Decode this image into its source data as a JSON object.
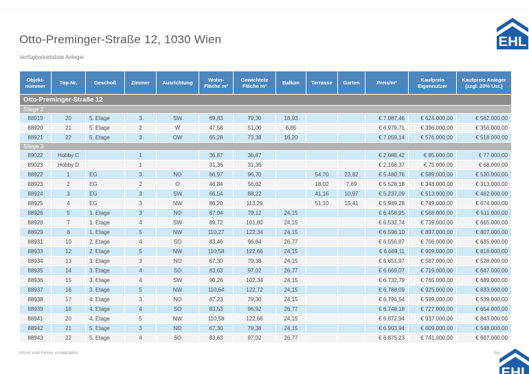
{
  "page": {
    "title": "Otto-Preminger-Straße 12, 1030 Wien",
    "subtitle": "Verfügbarkeitsliste Anleger"
  },
  "logo": {
    "text": "EHL"
  },
  "table": {
    "columns": [
      "Objekt- nummer",
      "Top-Nr.",
      "Geschoß",
      "Zimmer",
      "Ausrichtung",
      "Wohn- Fläche m²",
      "Gewichtete Fläche m²",
      "Balkon",
      "Terrasse",
      "Garten",
      "Preis/m²",
      "Kaufpreis Eigennutzer",
      "Kaufpreis Anleger (zzgl. 20% Ust.)"
    ],
    "group_title": "Otto-Preminger-Straße 12",
    "sections": [
      {
        "label": "Stiege 2",
        "rows": [
          [
            "88919",
            "20",
            "5. Etage",
            "3",
            "SW",
            "69,83",
            "79,30",
            "18,93",
            "",
            "",
            "€ 7.087,46",
            "€ 624.000,00",
            "€ 562.000,00"
          ],
          [
            "88920",
            "21",
            "5. Etage",
            "2",
            "W",
            "47,58",
            "51,00",
            "6,85",
            "",
            "",
            "€ 6.979,71",
            "€ 396.000,00",
            "€ 356.000,00"
          ],
          [
            "88921",
            "22",
            "5. Etage",
            "3",
            "OW",
            "65,28",
            "73,38",
            "16,20",
            "",
            "",
            "€ 7.059,14",
            "€ 576.000,00",
            "€ 518.000,00"
          ]
        ]
      },
      {
        "label": "Stiege 3",
        "rows": [
          [
            "89022",
            "Hobby C",
            "",
            "1",
            "",
            "36,87",
            "36,87",
            "",
            "",
            "",
            "€ 2.088,42",
            "€ 85.000,00",
            "€ 77.000,00"
          ],
          [
            "89023",
            "Hobby D",
            "",
            "1",
            "",
            "31,36",
            "31,36",
            "",
            "",
            "",
            "€ 2.168,37",
            "€ 75.000,00",
            "€ 68.000,00"
          ],
          [
            "88922",
            "1",
            "EG",
            "3",
            "NO",
            "66,97",
            "96,70",
            "",
            "54,70",
            "23,82",
            "€ 5.480,76",
            "€ 589.000,00",
            "€ 530.000,00"
          ],
          [
            "88923",
            "2",
            "EG",
            "2",
            "O",
            "46,84",
            "56,62",
            "",
            "18,02",
            "7,69",
            "€ 5.528,18",
            "€ 348.000,00",
            "€ 313.000,00"
          ],
          [
            "88924",
            "3",
            "EG",
            "3",
            "SW",
            "66,54",
            "88,22",
            "",
            "41,16",
            "10,97",
            "€ 5.237,09",
            "€ 513.000,00",
            "€ 462.000,00"
          ],
          [
            "88925",
            "4",
            "EG",
            "3",
            "NW",
            "86,20",
            "113,29",
            "",
            "51,10",
            "15,41",
            "€ 5.949,28",
            "€ 749.000,00",
            "€ 674.000,00"
          ],
          [
            "88926",
            "5",
            "1. Etage",
            "3",
            "NO",
            "67,04",
            "79,12",
            "24,15",
            "",
            "",
            "€ 6.458,95",
            "€ 568.000,00",
            "€ 511.000,00"
          ],
          [
            "88928",
            "7",
            "1. Etage",
            "4",
            "SW",
            "89,72",
            "101,80",
            "24,15",
            "",
            "",
            "€ 6.532,74",
            "€ 739.000,00",
            "€ 665.000,00"
          ],
          [
            "88929",
            "8",
            "1. Etage",
            "5",
            "NW",
            "110,27",
            "122,34",
            "24,15",
            "",
            "",
            "€ 6.596,10",
            "€ 897.000,00",
            "€ 807.000,00"
          ],
          [
            "88931",
            "10",
            "2. Etage",
            "4",
            "SO",
            "83,46",
            "96,84",
            "26,77",
            "",
            "",
            "€ 6.556,87",
            "€ 706.000,00",
            "€ 635.000,00"
          ],
          [
            "88933",
            "12",
            "2. Etage",
            "5",
            "NW",
            "110,58",
            "122,66",
            "24,15",
            "",
            "",
            "€ 6.669,11",
            "€ 909.000,00",
            "€ 818.000,00"
          ],
          [
            "88934",
            "13",
            "3. Etage",
            "3",
            "NO",
            "67,30",
            "79,38",
            "24,15",
            "",
            "",
            "€ 6.651,97",
            "€ 587.000,00",
            "€ 528.000,00"
          ],
          [
            "88935",
            "14",
            "3. Etage",
            "4",
            "SO",
            "83,63",
            "97,02",
            "26,77",
            "",
            "",
            "€ 6.669,07",
            "€ 719.000,00",
            "€ 647.000,00"
          ],
          [
            "88936",
            "15",
            "3. Etage",
            "4",
            "SW",
            "90,26",
            "102,34",
            "24,15",
            "",
            "",
            "€ 6.732,79",
            "€ 765.000,00",
            "€ 689.000,00"
          ],
          [
            "88937",
            "16",
            "3. Etage",
            "5",
            "NW",
            "110,64",
            "122,72",
            "24,15",
            "",
            "",
            "€ 6.788,09",
            "€ 925.000,00",
            "€ 833.000,00"
          ],
          [
            "88938",
            "17",
            "4. Etage",
            "3",
            "NO",
            "67,23",
            "79,30",
            "24,15",
            "",
            "",
            "€ 6.796,54",
            "€ 599.000,00",
            "€ 539.000,00"
          ],
          [
            "88939",
            "18",
            "4. Etage",
            "4",
            "SO",
            "83,53",
            "96,92",
            "26,77",
            "",
            "",
            "€ 6.748,18",
            "€ 727.000,00",
            "€ 654.000,00"
          ],
          [
            "88941",
            "20",
            "4. Etage",
            "5",
            "NW",
            "110,58",
            "122,66",
            "24,15",
            "",
            "",
            "€ 6.872,94",
            "€ 937.000,00",
            "€ 843.000,00"
          ],
          [
            "88942",
            "21",
            "5. Etage",
            "3",
            "NO",
            "67,30",
            "79,38",
            "24,15",
            "",
            "",
            "€ 6.903,94",
            "€ 609.000,00",
            "€ 548.000,00"
          ],
          [
            "88943",
            "22",
            "5. Etage",
            "4",
            "SO",
            "83,63",
            "97,02",
            "26,77",
            "",
            "",
            "€ 6.875,23",
            "€ 741.000,00",
            "€ 667.000,00"
          ]
        ]
      }
    ]
  },
  "footer": {
    "disclaimer": "Irrtum und Fehler vorbehalten.",
    "page_label": "Sei"
  },
  "colors": {
    "header_blue": "#4d86bd",
    "group_gray": "#8c8c8c",
    "section_gray": "#b5b5b5",
    "row_blue": "#cfe9f6",
    "row_alt": "#f3f3f3",
    "logo_blue": "#1d5ca6",
    "text_gray": "#4c4c4c"
  }
}
